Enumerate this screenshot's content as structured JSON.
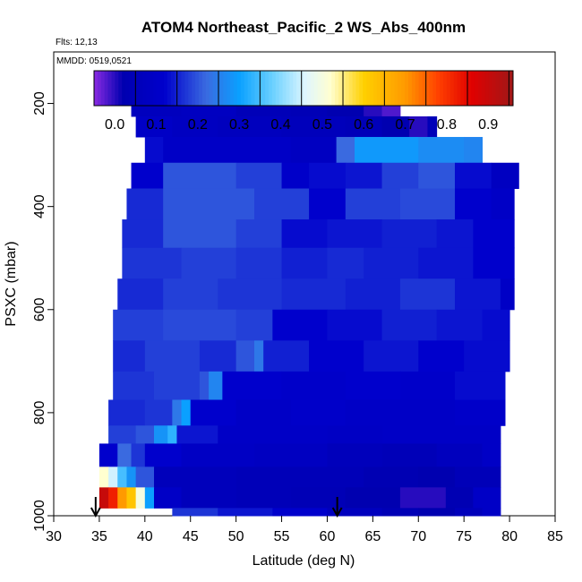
{
  "chart_data": {
    "type": "heatmap",
    "title": "ATOM4 Northeast_Pacific_2 WS_Abs_400nm",
    "subtitle_lines": [
      "Flts: 12,13",
      "MMDD: 0519,0521"
    ],
    "xlabel": "Latitude (deg N)",
    "ylabel": "PSXC (mbar)",
    "xlim": [
      30,
      85
    ],
    "ylim": [
      1000,
      100
    ],
    "y_reversed": true,
    "x_ticks": [
      30,
      35,
      40,
      45,
      50,
      55,
      60,
      65,
      70,
      75,
      80,
      85
    ],
    "y_ticks": [
      200,
      400,
      600,
      800,
      1000
    ],
    "colorbar": {
      "min": -0.05,
      "max": 0.96,
      "ticks": [
        0.0,
        0.1,
        0.2,
        0.3,
        0.4,
        0.5,
        0.6,
        0.7,
        0.8,
        0.9
      ],
      "color_stops": [
        {
          "v": -0.05,
          "c": "#8a2be2"
        },
        {
          "v": 0.02,
          "c": "#0000b0"
        },
        {
          "v": 0.12,
          "c": "#0000cc"
        },
        {
          "v": 0.22,
          "c": "#3a6ae0"
        },
        {
          "v": 0.3,
          "c": "#0aa0ff"
        },
        {
          "v": 0.38,
          "c": "#6ad0ff"
        },
        {
          "v": 0.46,
          "c": "#dff6ff"
        },
        {
          "v": 0.52,
          "c": "#ffffd0"
        },
        {
          "v": 0.6,
          "c": "#ffd000"
        },
        {
          "v": 0.7,
          "c": "#ff9a00"
        },
        {
          "v": 0.78,
          "c": "#ff4000"
        },
        {
          "v": 0.86,
          "c": "#e00000"
        },
        {
          "v": 0.96,
          "c": "#a01818"
        }
      ]
    },
    "layers": [
      {
        "p_top": 175,
        "p_bot": 225,
        "lat_min": 38.5,
        "lat_max": 68,
        "segments": [
          [
            38.5,
            0.07
          ],
          [
            44,
            0.08
          ],
          [
            50,
            0.05
          ],
          [
            56,
            0.04
          ],
          [
            60,
            0.02
          ],
          [
            64,
            0.0
          ],
          [
            66,
            -0.02
          ]
        ]
      },
      {
        "p_top": 225,
        "p_bot": 265,
        "lat_min": 39,
        "lat_max": 72,
        "segments": [
          [
            39,
            0.1
          ],
          [
            43,
            0.08
          ],
          [
            48,
            0.07
          ],
          [
            55,
            0.06
          ],
          [
            62,
            0.05
          ],
          [
            66,
            0.02
          ],
          [
            69,
            0.0
          ],
          [
            71,
            0.05
          ]
        ]
      },
      {
        "p_top": 265,
        "p_bot": 315,
        "lat_min": 40,
        "lat_max": 77,
        "segments": [
          [
            40,
            0.13
          ],
          [
            42,
            0.1
          ],
          [
            52,
            0.1
          ],
          [
            56,
            0.08
          ],
          [
            61,
            0.22
          ],
          [
            63,
            0.29
          ],
          [
            70,
            0.27
          ],
          [
            75,
            0.26
          ]
        ]
      },
      {
        "p_top": 315,
        "p_bot": 365,
        "lat_min": 38.5,
        "lat_max": 81,
        "segments": [
          [
            38.5,
            0.12
          ],
          [
            42,
            0.2
          ],
          [
            50,
            0.18
          ],
          [
            55,
            0.11
          ],
          [
            58,
            0.13
          ],
          [
            62,
            0.14
          ],
          [
            66,
            0.18
          ],
          [
            70,
            0.2
          ],
          [
            74,
            0.13
          ],
          [
            78,
            0.08
          ]
        ]
      },
      {
        "p_top": 365,
        "p_bot": 425,
        "lat_min": 38,
        "lat_max": 80.5,
        "segments": [
          [
            38,
            0.16
          ],
          [
            42,
            0.2
          ],
          [
            52,
            0.18
          ],
          [
            58,
            0.12
          ],
          [
            62,
            0.18
          ],
          [
            68,
            0.19
          ],
          [
            74,
            0.12
          ],
          [
            78,
            0.1
          ]
        ]
      },
      {
        "p_top": 425,
        "p_bot": 480,
        "lat_min": 37.5,
        "lat_max": 80.5,
        "segments": [
          [
            37.5,
            0.16
          ],
          [
            42,
            0.2
          ],
          [
            50,
            0.18
          ],
          [
            55,
            0.13
          ],
          [
            60,
            0.14
          ],
          [
            66,
            0.15
          ],
          [
            72,
            0.14
          ],
          [
            76,
            0.12
          ]
        ]
      },
      {
        "p_top": 480,
        "p_bot": 540,
        "lat_min": 37.5,
        "lat_max": 80.5,
        "segments": [
          [
            37.5,
            0.17
          ],
          [
            44,
            0.18
          ],
          [
            50,
            0.17
          ],
          [
            55,
            0.15
          ],
          [
            60,
            0.16
          ],
          [
            64,
            0.15
          ],
          [
            70,
            0.14
          ],
          [
            76,
            0.12
          ]
        ]
      },
      {
        "p_top": 540,
        "p_bot": 600,
        "lat_min": 37,
        "lat_max": 80.5,
        "segments": [
          [
            37,
            0.16
          ],
          [
            42,
            0.18
          ],
          [
            48,
            0.17
          ],
          [
            55,
            0.16
          ],
          [
            62,
            0.15
          ],
          [
            68,
            0.17
          ],
          [
            74,
            0.14
          ],
          [
            79,
            0.1
          ]
        ]
      },
      {
        "p_top": 600,
        "p_bot": 660,
        "lat_min": 36.5,
        "lat_max": 80,
        "segments": [
          [
            36.5,
            0.18
          ],
          [
            42,
            0.19
          ],
          [
            50,
            0.18
          ],
          [
            54,
            0.12
          ],
          [
            60,
            0.13
          ],
          [
            66,
            0.15
          ],
          [
            72,
            0.14
          ],
          [
            77,
            0.13
          ]
        ]
      },
      {
        "p_top": 660,
        "p_bot": 720,
        "lat_min": 36.5,
        "lat_max": 80,
        "segments": [
          [
            36.5,
            0.16
          ],
          [
            40,
            0.18
          ],
          [
            46,
            0.16
          ],
          [
            50,
            0.2
          ],
          [
            52,
            0.24
          ],
          [
            53,
            0.15
          ],
          [
            58,
            0.12
          ],
          [
            64,
            0.14
          ],
          [
            70,
            0.12
          ],
          [
            75,
            0.13
          ]
        ]
      },
      {
        "p_top": 720,
        "p_bot": 775,
        "lat_min": 36.5,
        "lat_max": 79.5,
        "segments": [
          [
            36.5,
            0.17
          ],
          [
            41,
            0.18
          ],
          [
            46,
            0.2
          ],
          [
            47,
            0.26
          ],
          [
            48.5,
            0.12
          ],
          [
            55,
            0.11
          ],
          [
            62,
            0.12
          ],
          [
            68,
            0.11
          ],
          [
            74,
            0.13
          ]
        ]
      },
      {
        "p_top": 775,
        "p_bot": 825,
        "lat_min": 36,
        "lat_max": 79.5,
        "segments": [
          [
            36,
            0.16
          ],
          [
            40,
            0.17
          ],
          [
            43,
            0.24
          ],
          [
            44,
            0.3
          ],
          [
            45,
            0.12
          ],
          [
            50,
            0.1
          ],
          [
            56,
            0.11
          ],
          [
            62,
            0.1
          ],
          [
            68,
            0.1
          ],
          [
            74,
            0.11
          ]
        ]
      },
      {
        "p_top": 825,
        "p_bot": 860,
        "lat_min": 36,
        "lat_max": 79,
        "segments": [
          [
            36,
            0.18
          ],
          [
            39,
            0.2
          ],
          [
            41,
            0.28
          ],
          [
            42.5,
            0.33
          ],
          [
            43.5,
            0.14
          ],
          [
            48,
            0.1
          ],
          [
            54,
            0.1
          ],
          [
            60,
            0.09
          ],
          [
            66,
            0.1
          ],
          [
            72,
            0.1
          ]
        ]
      },
      {
        "p_top": 860,
        "p_bot": 905,
        "lat_min": 35,
        "lat_max": 79,
        "segments": [
          [
            35,
            0.12
          ],
          [
            37,
            0.22
          ],
          [
            38.5,
            0.17
          ],
          [
            40,
            0.12
          ],
          [
            44,
            0.09
          ],
          [
            52,
            0.08
          ],
          [
            60,
            0.06
          ],
          [
            66,
            0.05
          ],
          [
            72,
            0.07
          ],
          [
            77,
            0.1
          ]
        ]
      },
      {
        "p_top": 905,
        "p_bot": 945,
        "lat_min": 35,
        "lat_max": 79,
        "segments": [
          [
            35,
            0.52
          ],
          [
            36,
            0.45
          ],
          [
            37,
            0.35
          ],
          [
            38,
            0.28
          ],
          [
            39,
            0.2
          ],
          [
            41,
            0.06
          ],
          [
            50,
            0.05
          ],
          [
            58,
            0.05
          ],
          [
            64,
            0.03
          ],
          [
            70,
            0.02
          ],
          [
            74,
            0.05
          ]
        ]
      },
      {
        "p_top": 945,
        "p_bot": 985,
        "lat_min": 35,
        "lat_max": 79,
        "segments": [
          [
            35,
            0.9
          ],
          [
            36,
            0.82
          ],
          [
            37,
            0.7
          ],
          [
            38,
            0.62
          ],
          [
            39,
            0.5
          ],
          [
            40,
            0.3
          ],
          [
            41,
            0.1
          ],
          [
            44,
            0.06
          ],
          [
            50,
            0.05
          ],
          [
            56,
            0.04
          ],
          [
            62,
            0.02
          ],
          [
            68,
            0.0
          ],
          [
            73,
            0.03
          ],
          [
            76,
            0.1
          ]
        ]
      },
      {
        "p_top": 985,
        "p_bot": 1000,
        "lat_min": 43,
        "lat_max": 79,
        "segments": [
          [
            43,
            0.17
          ],
          [
            48,
            0.14
          ],
          [
            54,
            0.12
          ],
          [
            60,
            0.07
          ],
          [
            66,
            0.04
          ],
          [
            70,
            0.02
          ],
          [
            74,
            0.06
          ],
          [
            77,
            0.1
          ]
        ]
      }
    ],
    "arrows_at_lat": [
      34.6,
      61.1
    ]
  }
}
